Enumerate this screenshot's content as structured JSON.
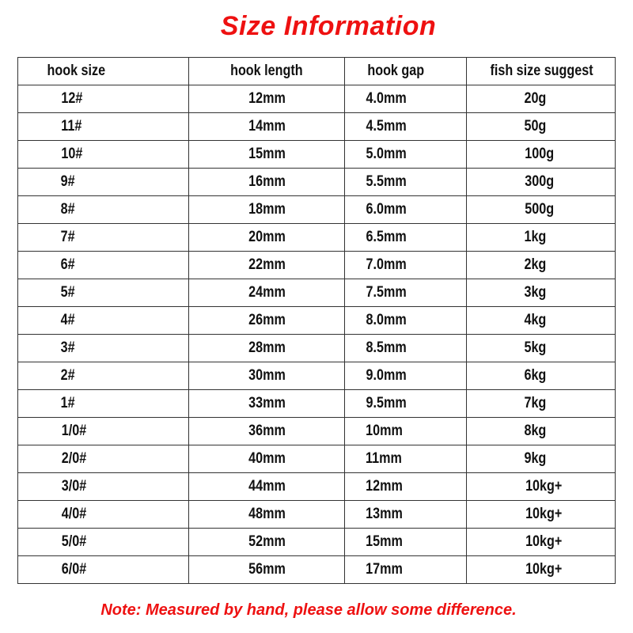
{
  "title": "Size Information",
  "table": {
    "headers": [
      "hook size",
      "hook length",
      "hook gap",
      "fish size suggest"
    ],
    "rows": [
      [
        "12#",
        "12mm",
        "4.0mm",
        "20g"
      ],
      [
        "11#",
        "14mm",
        "4.5mm",
        "50g"
      ],
      [
        "10#",
        "15mm",
        "5.0mm",
        "100g"
      ],
      [
        "9#",
        "16mm",
        "5.5mm",
        "300g"
      ],
      [
        "8#",
        "18mm",
        "6.0mm",
        "500g"
      ],
      [
        "7#",
        "20mm",
        "6.5mm",
        "1kg"
      ],
      [
        "6#",
        "22mm",
        "7.0mm",
        "2kg"
      ],
      [
        "5#",
        "24mm",
        "7.5mm",
        "3kg"
      ],
      [
        "4#",
        "26mm",
        "8.0mm",
        "4kg"
      ],
      [
        "3#",
        "28mm",
        "8.5mm",
        "5kg"
      ],
      [
        "2#",
        "30mm",
        "9.0mm",
        "6kg"
      ],
      [
        "1#",
        "33mm",
        "9.5mm",
        "7kg"
      ],
      [
        "1/0#",
        "36mm",
        "10mm",
        "8kg"
      ],
      [
        "2/0#",
        "40mm",
        "11mm",
        "9kg"
      ],
      [
        "3/0#",
        "44mm",
        "12mm",
        "10kg+"
      ],
      [
        "4/0#",
        "48mm",
        "13mm",
        "10kg+"
      ],
      [
        "5/0#",
        "52mm",
        "15mm",
        "10kg+"
      ],
      [
        "6/0#",
        "56mm",
        "17mm",
        "10kg+"
      ]
    ]
  },
  "note": "Note: Measured by hand, please allow some difference.",
  "colors": {
    "accent": "#ee1111",
    "text": "#111111"
  }
}
